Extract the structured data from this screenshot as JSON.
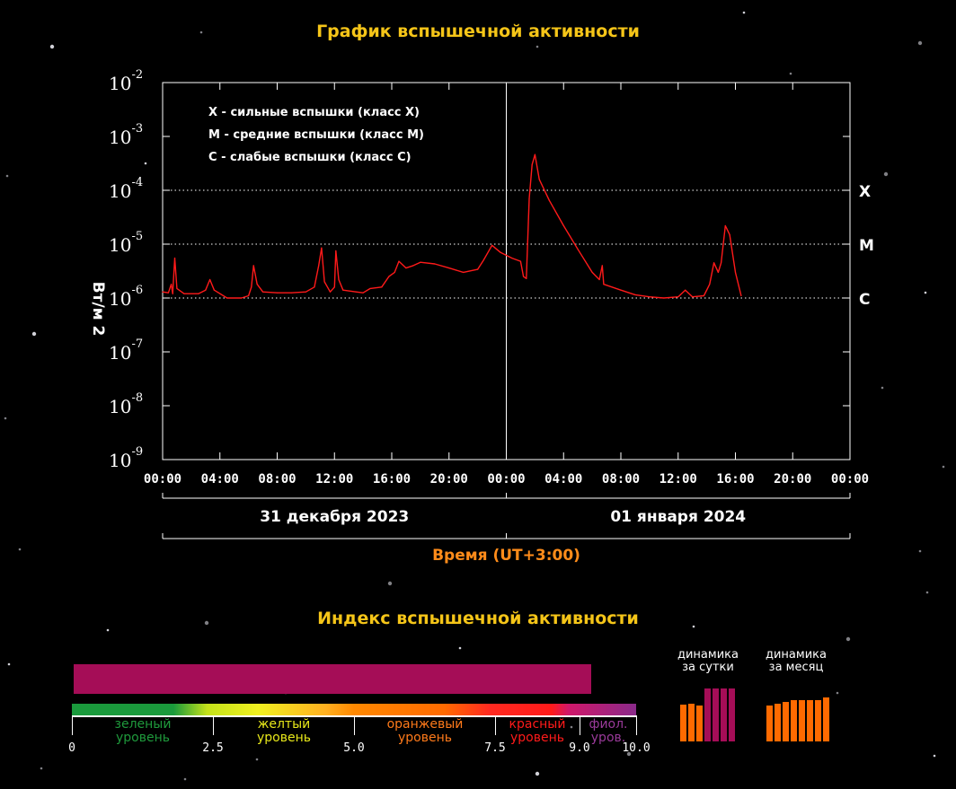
{
  "chart_title": "График вспышечной активности",
  "index_title": "Индекс вспышечной активности",
  "colors": {
    "title": "#f5c518",
    "series": "#ff1a1a",
    "time_label": "#ff8c1a",
    "index_bar": "#a50d57",
    "dyn_orange": "#ff6a00",
    "dyn_purple": "#a50d57"
  },
  "chart_data": {
    "type": "line",
    "ylabel": "Вт/м 2",
    "y_scale": "log",
    "ylim": [
      1e-09,
      0.01
    ],
    "y_ticks": [
      {
        "base": "10",
        "exp": "-2"
      },
      {
        "base": "10",
        "exp": "-3"
      },
      {
        "base": "10",
        "exp": "-4"
      },
      {
        "base": "10",
        "exp": "-5"
      },
      {
        "base": "10",
        "exp": "-6"
      },
      {
        "base": "10",
        "exp": "-7"
      },
      {
        "base": "10",
        "exp": "-8"
      },
      {
        "base": "10",
        "exp": "-9"
      }
    ],
    "x_tick_labels": [
      "00:00",
      "04:00",
      "08:00",
      "12:00",
      "16:00",
      "20:00",
      "00:00",
      "04:00",
      "08:00",
      "12:00",
      "16:00",
      "20:00",
      "00:00"
    ],
    "xlim_hours": [
      0,
      48
    ],
    "date_labels": [
      "31 декабря 2023",
      "01 января 2024"
    ],
    "xlabel": "Время (UT+3:00)",
    "class_thresholds": [
      {
        "label": "X",
        "value": 0.0001
      },
      {
        "label": "M",
        "value": 1e-05
      },
      {
        "label": "C",
        "value": 1e-06
      }
    ],
    "legend": [
      "X - сильные вспышки (класс X)",
      "M - средние вспышки (класс M)",
      "C - слабые вспышки (класс C)"
    ],
    "series": [
      {
        "points": [
          [
            0.0,
            1.3e-06
          ],
          [
            0.4,
            1.25e-06
          ],
          [
            0.6,
            1.8e-06
          ],
          [
            0.7,
            1.2e-06
          ],
          [
            0.85,
            5.5e-06
          ],
          [
            1.0,
            1.5e-06
          ],
          [
            1.5,
            1.2e-06
          ],
          [
            2.5,
            1.2e-06
          ],
          [
            3.0,
            1.4e-06
          ],
          [
            3.3,
            2.2e-06
          ],
          [
            3.6,
            1.4e-06
          ],
          [
            4.5,
            1e-06
          ],
          [
            5.5,
            1e-06
          ],
          [
            6.0,
            1.1e-06
          ],
          [
            6.2,
            1.6e-06
          ],
          [
            6.35,
            4e-06
          ],
          [
            6.6,
            1.8e-06
          ],
          [
            7.0,
            1.3e-06
          ],
          [
            8.0,
            1.25e-06
          ],
          [
            9.0,
            1.25e-06
          ],
          [
            10.0,
            1.3e-06
          ],
          [
            10.6,
            1.6e-06
          ],
          [
            10.9,
            4e-06
          ],
          [
            11.1,
            8.5e-06
          ],
          [
            11.3,
            2e-06
          ],
          [
            11.7,
            1.3e-06
          ],
          [
            12.0,
            1.6e-06
          ],
          [
            12.1,
            7.5e-06
          ],
          [
            12.3,
            2.2e-06
          ],
          [
            12.6,
            1.4e-06
          ],
          [
            13.5,
            1.3e-06
          ],
          [
            14.0,
            1.25e-06
          ],
          [
            14.5,
            1.5e-06
          ],
          [
            15.3,
            1.6e-06
          ],
          [
            15.8,
            2.5e-06
          ],
          [
            16.2,
            3e-06
          ],
          [
            16.5,
            4.8e-06
          ],
          [
            17.0,
            3.6e-06
          ],
          [
            17.5,
            4e-06
          ],
          [
            18.0,
            4.6e-06
          ],
          [
            19.0,
            4.3e-06
          ],
          [
            20.0,
            3.6e-06
          ],
          [
            21.0,
            3e-06
          ],
          [
            22.0,
            3.4e-06
          ],
          [
            22.4,
            5e-06
          ],
          [
            23.0,
            9.5e-06
          ],
          [
            23.6,
            7e-06
          ],
          [
            24.4,
            5.5e-06
          ],
          [
            25.0,
            4.8e-06
          ],
          [
            25.2,
            2.5e-06
          ],
          [
            25.4,
            2.3e-06
          ],
          [
            25.6,
            7e-05
          ],
          [
            25.8,
            0.0003
          ],
          [
            26.0,
            0.00046
          ],
          [
            26.3,
            0.00016
          ],
          [
            27.0,
            6.5e-05
          ],
          [
            28.0,
            2.2e-05
          ],
          [
            29.0,
            8e-06
          ],
          [
            30.0,
            3e-06
          ],
          [
            30.5,
            2.2e-06
          ],
          [
            30.7,
            4e-06
          ],
          [
            30.8,
            1.8e-06
          ],
          [
            32.0,
            1.4e-06
          ],
          [
            33.0,
            1.15e-06
          ],
          [
            34.0,
            1.05e-06
          ],
          [
            35.0,
            1e-06
          ],
          [
            36.0,
            1.05e-06
          ],
          [
            36.5,
            1.4e-06
          ],
          [
            37.0,
            1.05e-06
          ],
          [
            37.8,
            1.1e-06
          ],
          [
            38.2,
            1.8e-06
          ],
          [
            38.5,
            4.5e-06
          ],
          [
            38.8,
            3e-06
          ],
          [
            39.0,
            4.5e-06
          ],
          [
            39.3,
            2.2e-05
          ],
          [
            39.6,
            1.5e-05
          ],
          [
            40.0,
            3e-06
          ],
          [
            40.4,
            1.1e-06
          ]
        ]
      }
    ]
  },
  "index": {
    "value": 9.2,
    "scale_max": 10.0,
    "ticks": [
      "0",
      "2.5",
      "5.0",
      "7.5",
      "9.0",
      "10.0"
    ],
    "tick_values": [
      0,
      2.5,
      5.0,
      7.5,
      9.0,
      10.0
    ],
    "levels": [
      {
        "line1": "зеленый",
        "line2": "уровень",
        "color": "#1f9a3c"
      },
      {
        "line1": "желтый",
        "line2": "уровень",
        "color": "#e8e81a"
      },
      {
        "line1": "оранжевый",
        "line2": "уровень",
        "color": "#ff7a1a"
      },
      {
        "line1": "красный",
        "line2": "уровень",
        "color": "#ff1a1a"
      },
      {
        "line1": "фиол.",
        "line2": "уров.",
        "color": "#9a3a9a"
      }
    ]
  },
  "dynamics": {
    "day": {
      "line1": "динамика",
      "line2": "за сутки",
      "values": [
        6.5,
        6.6,
        6.4,
        9.2,
        9.2,
        9.2,
        9.2
      ],
      "colors": [
        "#ff6a00",
        "#ff6a00",
        "#ff6a00",
        "#a50d57",
        "#a50d57",
        "#a50d57",
        "#a50d57"
      ]
    },
    "month": {
      "line1": "динамика",
      "line2": "за месяц",
      "values": [
        6.4,
        6.7,
        6.9,
        7.3,
        7.3,
        7.2,
        7.2,
        7.8
      ],
      "colors": [
        "#ff6a00",
        "#ff6a00",
        "#ff6a00",
        "#ff6a00",
        "#ff6a00",
        "#ff6a00",
        "#ff6a00",
        "#ff6a00"
      ]
    }
  }
}
